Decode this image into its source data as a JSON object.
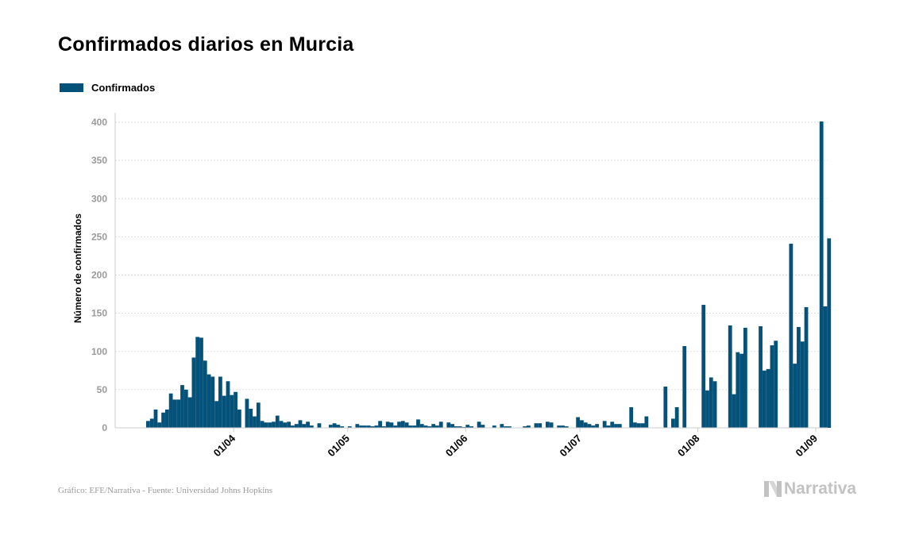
{
  "chart_data": {
    "type": "bar",
    "title": "Confirmados diarios en Murcia",
    "ylabel": "Número de confirmados",
    "xlabel": "",
    "ylim": [
      0,
      400
    ],
    "yticks": [
      0,
      50,
      100,
      150,
      200,
      250,
      300,
      350,
      400
    ],
    "xticks": [
      {
        "date": "2020-04-01",
        "label": "01/04"
      },
      {
        "date": "2020-05-01",
        "label": "01/05"
      },
      {
        "date": "2020-06-01",
        "label": "01/06"
      },
      {
        "date": "2020-07-01",
        "label": "01/07"
      },
      {
        "date": "2020-08-01",
        "label": "01/08"
      },
      {
        "date": "2020-09-01",
        "label": "01/09"
      }
    ],
    "x_start": "2020-03-09",
    "x_end": "2020-09-01",
    "grid": true,
    "legend_position": "top-left",
    "color": "#04527a",
    "series": [
      {
        "name": "Confirmados",
        "start_date": "2020-03-09",
        "values": [
          9,
          12,
          24,
          7,
          20,
          24,
          45,
          37,
          37,
          56,
          50,
          40,
          92,
          119,
          118,
          88,
          70,
          67,
          35,
          67,
          42,
          61,
          43,
          47,
          24,
          0,
          38,
          25,
          15,
          33,
          9,
          7,
          7,
          8,
          16,
          9,
          7,
          8,
          3,
          5,
          10,
          5,
          8,
          3,
          0,
          6,
          0,
          0,
          4,
          6,
          4,
          2,
          0,
          2,
          0,
          5,
          3,
          3,
          3,
          2,
          3,
          9,
          2,
          8,
          7,
          3,
          8,
          9,
          7,
          3,
          3,
          11,
          5,
          3,
          2,
          5,
          3,
          8,
          0,
          7,
          5,
          2,
          2,
          1,
          4,
          2,
          0,
          8,
          4,
          0,
          0,
          3,
          0,
          5,
          2,
          2,
          0,
          0,
          0,
          2,
          3,
          0,
          6,
          6,
          0,
          8,
          7,
          0,
          3,
          3,
          2,
          0,
          0,
          14,
          10,
          7,
          5,
          3,
          5,
          0,
          9,
          3,
          8,
          5,
          5,
          0,
          0,
          27,
          7,
          6,
          6,
          15,
          0,
          0,
          0,
          0,
          54,
          0,
          12,
          27,
          0,
          107,
          0,
          0,
          0,
          0,
          161,
          49,
          66,
          61,
          0,
          0,
          0,
          134,
          44,
          99,
          97,
          131,
          0,
          0,
          0,
          133,
          75,
          77,
          108,
          114,
          0,
          0,
          0,
          241,
          84,
          132,
          113,
          158,
          0,
          0,
          0,
          401,
          159,
          248,
          0,
          0,
          0,
          0,
          0,
          0,
          0,
          0,
          0,
          0
        ]
      }
    ]
  },
  "legend": {
    "label": "Confirmados"
  },
  "footer": {
    "source": "Gráfico: EFE/Narrativa - Fuente: Universidad Johns Hopkins",
    "logo_text": "Narrativa"
  },
  "colors": {
    "bar": "#04527a",
    "grid": "#dddddd",
    "axis": "#cccccc",
    "muted": "#9a9a9a",
    "logo": "#c2c2c2"
  }
}
